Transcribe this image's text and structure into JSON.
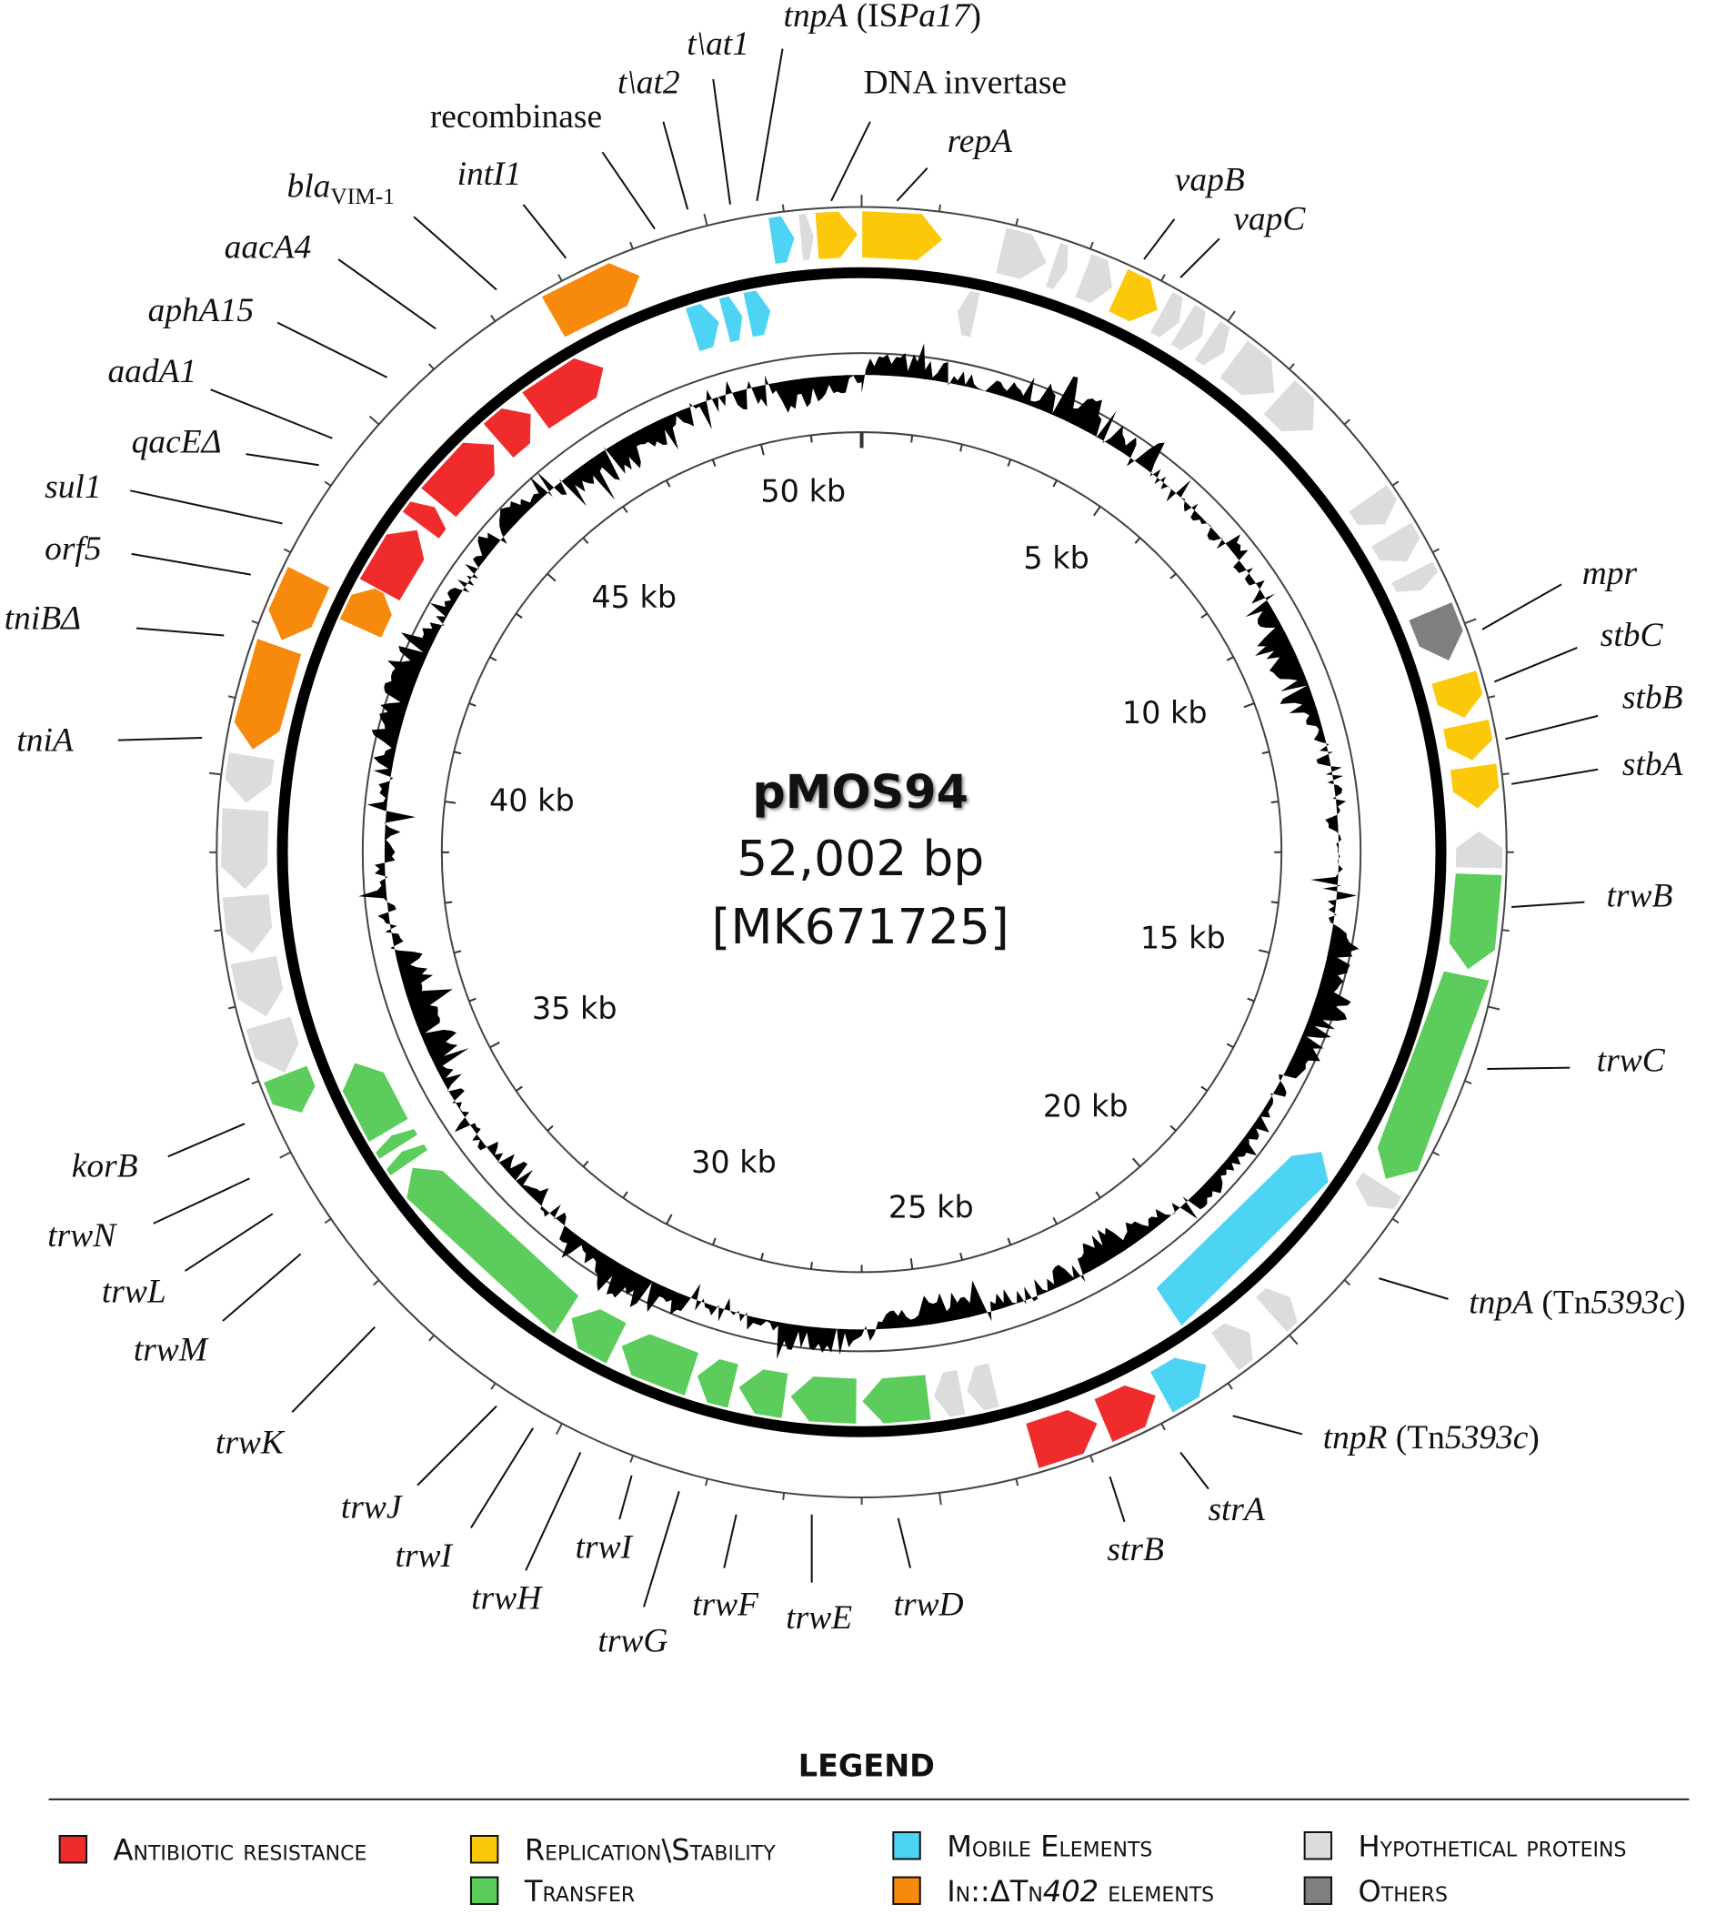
{
  "plasmid": {
    "name": "pMOS94",
    "size": "52,002 bp",
    "accession": "[MK671725]"
  },
  "kb_labels": [
    "50 kb",
    "5 kb",
    "10 kb",
    "15 kb",
    "20 kb",
    "25 kb",
    "30 kb",
    "35 kb",
    "40 kb",
    "45 kb"
  ],
  "gene_labels": [
    [
      "tnpA",
      " (IS",
      "Pa17",
      ")"
    ],
    [
      "DNA invertase"
    ],
    [
      "repA"
    ],
    [
      "t\\at1"
    ],
    [
      "t\\at2"
    ],
    [
      "recombinase"
    ],
    [
      "intI1"
    ],
    [
      "bla",
      "VIM-1"
    ],
    [
      "aacA4"
    ],
    [
      "aphA15"
    ],
    [
      "aadA1"
    ],
    [
      "qacEΔ"
    ],
    [
      "sul1"
    ],
    [
      "orf5"
    ],
    [
      "tniBΔ"
    ],
    [
      "tniA"
    ],
    [
      "korB"
    ],
    [
      "trwN"
    ],
    [
      "trwL"
    ],
    [
      "trwM"
    ],
    [
      "trwK"
    ],
    [
      "trwJ"
    ],
    [
      "trwI"
    ],
    [
      "trwH"
    ],
    [
      "trwI"
    ],
    [
      "trwG"
    ],
    [
      "trwF"
    ],
    [
      "trwE"
    ],
    [
      "trwD"
    ],
    [
      "strB"
    ],
    [
      "strA"
    ],
    [
      "tnpR",
      " (Tn",
      "5393c",
      ")"
    ],
    [
      "tnpA",
      " (Tn",
      "5393c",
      ")"
    ],
    [
      "trwC"
    ],
    [
      "trwB"
    ],
    [
      "stbA"
    ],
    [
      "stbB"
    ],
    [
      "stbC"
    ],
    [
      "mpr"
    ],
    [
      "vapB"
    ],
    [
      "vapC"
    ]
  ],
  "legend": {
    "title": "LEGEND",
    "items": [
      {
        "label": [
          "Antibiotic resistance"
        ],
        "color": "#f02b2b"
      },
      {
        "label": [
          "Replication\\Stability"
        ],
        "color": "#fcc80a"
      },
      {
        "label": [
          "Mobile Elements"
        ],
        "color": "#4dd4f4"
      },
      {
        "label": [
          "Hypothetical proteins"
        ],
        "color": "#dcdcdc"
      },
      {
        "label": [
          "Transfer"
        ],
        "color": "#5ccd5c"
      },
      {
        "label": [
          "In::ΔTn",
          "402",
          " elements"
        ],
        "color": "#f7890c"
      },
      {
        "label": [
          "Others"
        ],
        "color": "#7f7f7f"
      }
    ]
  }
}
